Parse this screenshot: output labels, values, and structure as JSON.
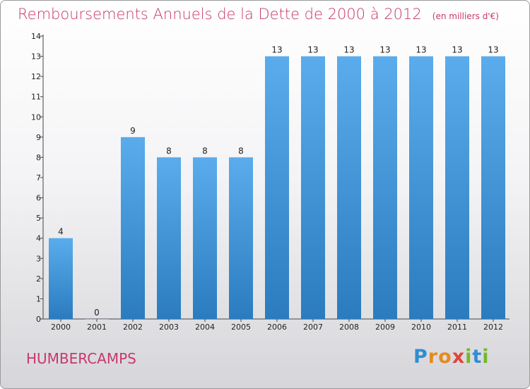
{
  "header": {
    "title": "Remboursements Annuels de la Dette de 2000 à 2012",
    "unit": "(en milliers d'€)"
  },
  "footer": {
    "commune": "HUMBERCAMPS",
    "logo": "Proxiti"
  },
  "colors": {
    "bar_top": "#5aacec",
    "bar_bottom": "#2a7cbf",
    "title": "#c8386a"
  },
  "chart_data": {
    "type": "bar",
    "title": "Remboursements Annuels de la Dette de 2000 à 2012",
    "ylabel": "(en milliers d'€)",
    "categories": [
      "2000",
      "2001",
      "2002",
      "2003",
      "2004",
      "2005",
      "2006",
      "2007",
      "2008",
      "2009",
      "2010",
      "2011",
      "2012"
    ],
    "values": [
      4,
      0,
      9,
      8,
      8,
      8,
      13,
      13,
      13,
      13,
      13,
      13,
      13
    ],
    "value_labels": [
      "4",
      "0",
      "9",
      "8",
      "8",
      "8",
      "13",
      "13",
      "13",
      "13",
      "13",
      "13",
      "13"
    ],
    "yticks": [
      0,
      1,
      2,
      3,
      4,
      5,
      6,
      7,
      8,
      9,
      10,
      11,
      12,
      13,
      14
    ],
    "ylim": [
      0,
      14
    ],
    "grid": false,
    "legend": "none"
  }
}
